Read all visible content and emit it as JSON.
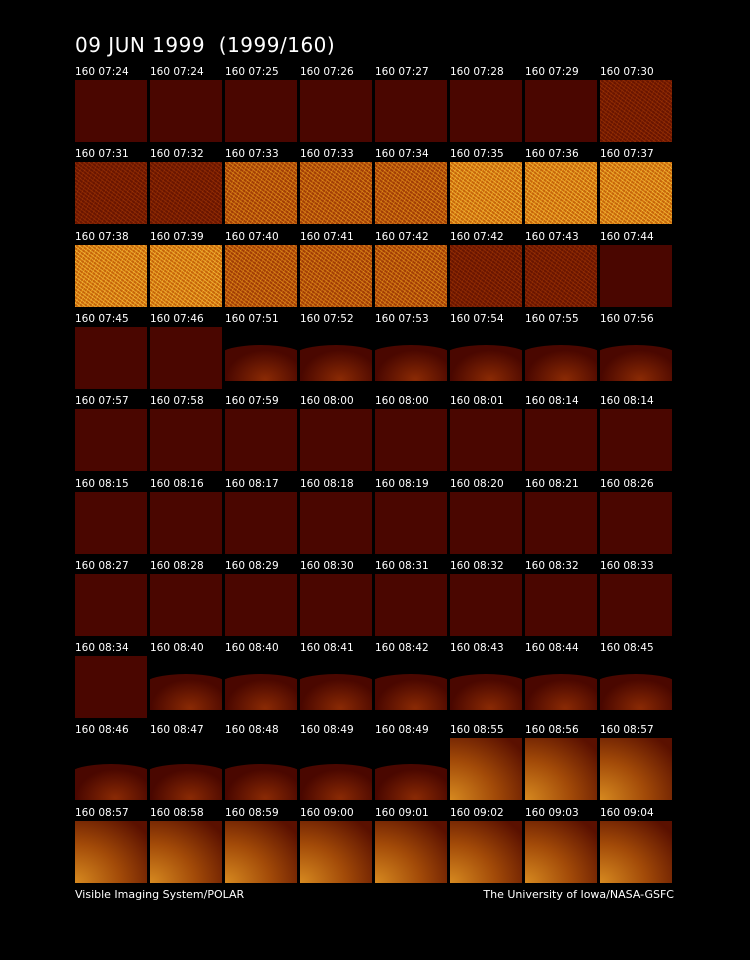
{
  "header": {
    "title": "09 JUN 1999  (1999/160)"
  },
  "frames": [
    "160 07:24",
    "160 07:24",
    "160 07:25",
    "160 07:26",
    "160 07:27",
    "160 07:28",
    "160 07:29",
    "160 07:30",
    "160 07:31",
    "160 07:32",
    "160 07:33",
    "160 07:33",
    "160 07:34",
    "160 07:35",
    "160 07:36",
    "160 07:37",
    "160 07:38",
    "160 07:39",
    "160 07:40",
    "160 07:41",
    "160 07:42",
    "160 07:42",
    "160 07:43",
    "160 07:44",
    "160 07:45",
    "160 07:46",
    "160 07:51",
    "160 07:52",
    "160 07:53",
    "160 07:54",
    "160 07:55",
    "160 07:56",
    "160 07:57",
    "160 07:58",
    "160 07:59",
    "160 08:00",
    "160 08:00",
    "160 08:01",
    "160 08:14",
    "160 08:14",
    "160 08:15",
    "160 08:16",
    "160 08:17",
    "160 08:18",
    "160 08:19",
    "160 08:20",
    "160 08:21",
    "160 08:26",
    "160 08:27",
    "160 08:28",
    "160 08:29",
    "160 08:30",
    "160 08:31",
    "160 08:32",
    "160 08:32",
    "160 08:33",
    "160 08:34",
    "160 08:40",
    "160 08:40",
    "160 08:41",
    "160 08:42",
    "160 08:43",
    "160 08:44",
    "160 08:45",
    "160 08:46",
    "160 08:47",
    "160 08:48",
    "160 08:49",
    "160 08:49",
    "160 08:55",
    "160 08:56",
    "160 08:57",
    "160 08:57",
    "160 08:58",
    "160 08:59",
    "160 09:00",
    "160 09:01",
    "160 09:02",
    "160 09:03",
    "160 09:04"
  ],
  "footer": {
    "left": "Visible Imaging System/POLAR",
    "right": "The University of Iowa/NASA-GSFC"
  }
}
